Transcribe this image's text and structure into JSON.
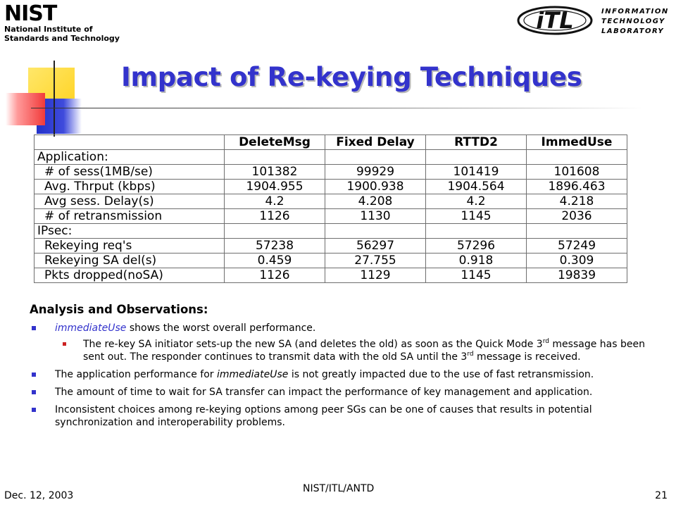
{
  "header": {
    "nist_logo": {
      "word": "NIST",
      "line1": "National Institute of",
      "line2": "Standards and Technology"
    },
    "itl_logo": {
      "mark": "iTL",
      "line1": "INFORMATION",
      "line2": "TECHNOLOGY",
      "line3": "LABORATORY"
    }
  },
  "slide": {
    "title": "Impact of Re-keying Techniques",
    "title_color": "#3333cc"
  },
  "table": {
    "columns": [
      "",
      "DeleteMsg",
      "Fixed Delay",
      "RTTD2",
      "ImmedUse"
    ],
    "rows": [
      {
        "label": "Application:",
        "values": [
          "",
          "",
          "",
          ""
        ]
      },
      {
        "label": "# of sess(1MB/se)",
        "values": [
          "101382",
          "99929",
          "101419",
          "101608"
        ]
      },
      {
        "label": "Avg. Thrput (kbps)",
        "values": [
          "1904.955",
          "1900.938",
          "1904.564",
          "1896.463"
        ]
      },
      {
        "label": "Avg sess. Delay(s)",
        "values": [
          "4.2",
          "4.208",
          "4.2",
          "4.218"
        ]
      },
      {
        "label": "# of retransmission",
        "values": [
          "1126",
          "1130",
          "1145",
          "2036"
        ]
      },
      {
        "label": "IPsec:",
        "values": [
          "",
          "",
          "",
          ""
        ]
      },
      {
        "label": "Rekeying req's",
        "values": [
          "57238",
          "56297",
          "57296",
          "57249"
        ]
      },
      {
        "label": "Rekeying SA del(s)",
        "values": [
          "0.459",
          "27.755",
          "0.918",
          "0.309"
        ]
      },
      {
        "label": "Pkts dropped(noSA)",
        "values": [
          "1126",
          "1129",
          "1145",
          "19839"
        ]
      }
    ]
  },
  "analysis": {
    "heading": "Analysis and Observations:",
    "b1": {
      "em": "immediateUse",
      "text": " shows the worst overall performance."
    },
    "b1_sub": {
      "text1": "The re-key SA initiator sets-up the new SA (and deletes the old) as soon as the Quick Mode 3",
      "sup1": "rd",
      "text2": " message has been sent out.  The responder continues to transmit data with the old SA until the 3",
      "sup2": "rd",
      "text3": " message is received."
    },
    "b2": {
      "pre": "The application performance for ",
      "em": "immediateUse",
      "post": " is not greatly impacted due to the use of fast retransmission."
    },
    "b3": "The amount of time to wait for SA transfer can impact the performance of key management and application.",
    "b4": "Inconsistent choices among re-keying options among peer SGs can be one of causes that results in potential synchronization and interoperability problems."
  },
  "footer": {
    "date": "Dec. 12, 2003",
    "center": "NIST/ITL/ANTD",
    "page": "21"
  }
}
